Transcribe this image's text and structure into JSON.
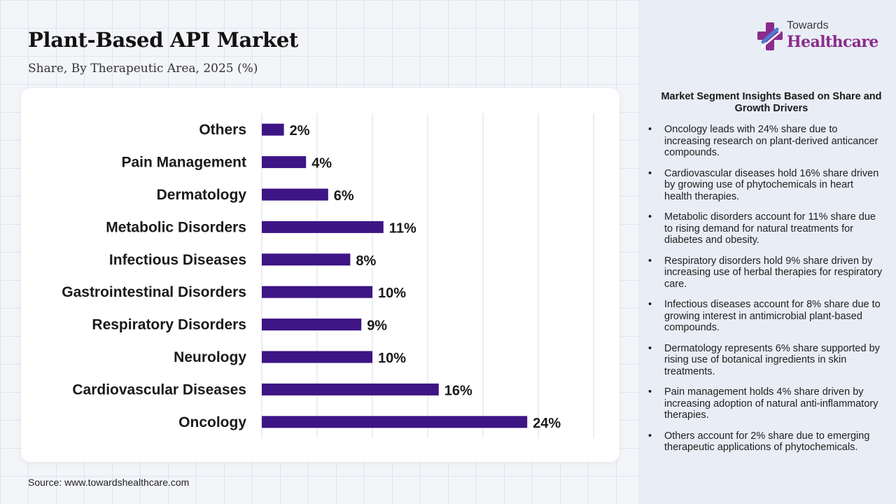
{
  "header": {
    "title": "Plant-Based API Market",
    "subtitle": "Share, By Therapeutic Area, 2025 (%)"
  },
  "brand": {
    "line1": "Towards",
    "line2": "Healthcare",
    "accent": "#8a2c8c",
    "logo_icon": "cross-logo-icon"
  },
  "chart_data": {
    "type": "bar",
    "orientation": "horizontal",
    "categories": [
      "Others",
      "Pain Management",
      "Dermatology",
      "Metabolic Disorders",
      "Infectious Diseases",
      "Gastrointestinal Disorders",
      "Respiratory Disorders",
      "Neurology",
      "Cardiovascular Diseases",
      "Oncology"
    ],
    "values": [
      2,
      4,
      6,
      11,
      8,
      10,
      9,
      10,
      16,
      24
    ],
    "value_labels": [
      "2%",
      "4%",
      "6%",
      "11%",
      "8%",
      "10%",
      "9%",
      "10%",
      "16%",
      "24%"
    ],
    "xlim": [
      0,
      30
    ],
    "grid": true,
    "bar_color": "#3d1585"
  },
  "insights": {
    "title": "Market Segment Insights Based on Share and Growth Drivers",
    "bullet": "•",
    "items": [
      "Oncology leads with 24% share due to increasing research on plant-derived anticancer compounds.",
      "Cardiovascular diseases hold 16% share driven by growing use of phytochemicals in heart health therapies.",
      "Metabolic disorders account for 11% share due to rising demand for natural treatments for diabetes and obesity.",
      "Respiratory disorders hold 9% share driven by increasing use of herbal therapies for respiratory care.",
      "Infectious diseases account for 8% share due to growing interest in antimicrobial plant-based compounds.",
      "Dermatology represents 6% share supported by rising use of botanical ingredients in skin treatments.",
      "Pain management holds 4% share driven by increasing adoption of natural anti-inflammatory therapies.",
      "Others account for 2% share due to emerging therapeutic applications of phytochemicals."
    ]
  },
  "footer": {
    "source": "Source: www.towardshealthcare.com"
  }
}
